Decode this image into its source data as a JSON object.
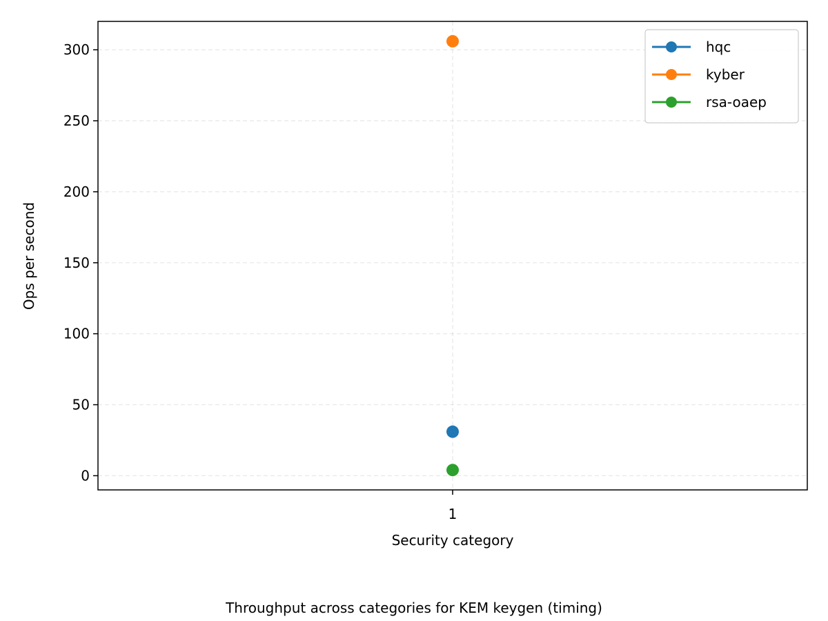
{
  "chart_data": {
    "type": "line",
    "caption": "Throughput across categories for KEM keygen (timing)",
    "xlabel": "Security category",
    "ylabel": "Ops per second",
    "x": [
      1
    ],
    "x_tick_labels": [
      "1"
    ],
    "xlim": [
      0,
      2
    ],
    "ylim": [
      -10,
      320
    ],
    "y_ticks": [
      0,
      50,
      100,
      150,
      200,
      250,
      300
    ],
    "grid": true,
    "legend_position": "top-right",
    "series": [
      {
        "name": "hqc",
        "color": "#1f77b4",
        "values": [
          31
        ]
      },
      {
        "name": "kyber",
        "color": "#ff7f0e",
        "values": [
          306
        ]
      },
      {
        "name": "rsa-oaep",
        "color": "#2ca02c",
        "values": [
          4
        ]
      }
    ]
  }
}
